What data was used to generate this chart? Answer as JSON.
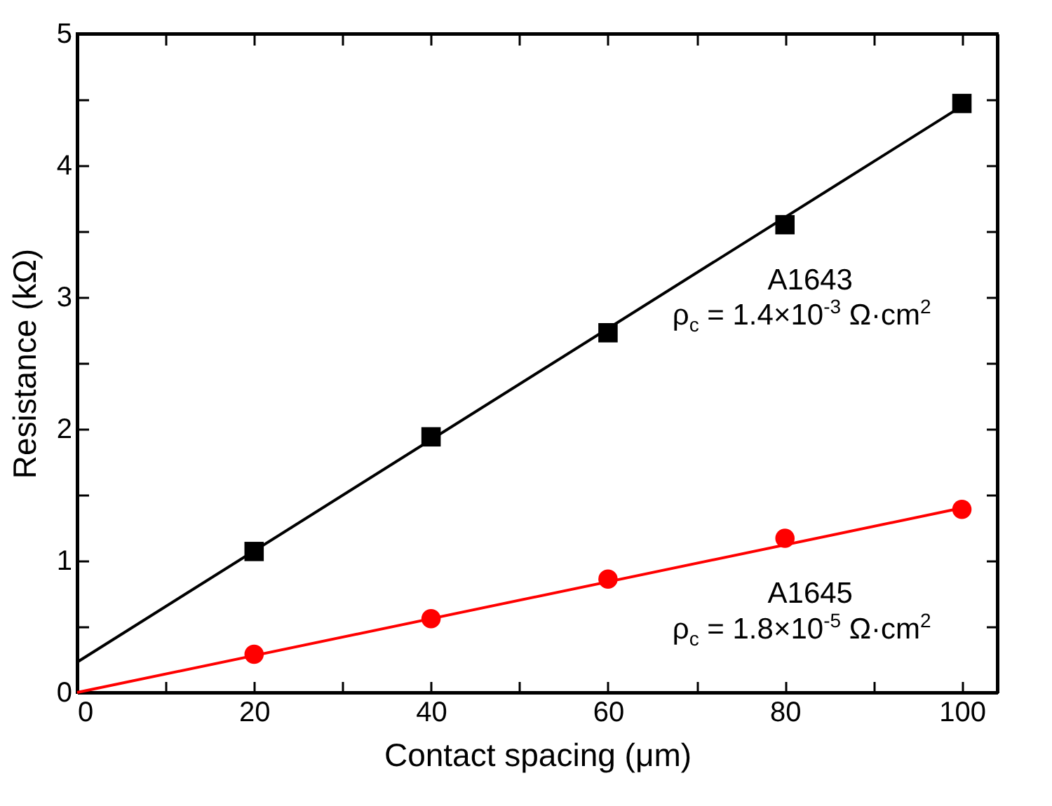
{
  "chart_data": {
    "type": "scatter",
    "xlabel": "Contact spacing (μm)",
    "ylabel": "Resistance (kΩ)",
    "xlim": [
      0,
      104
    ],
    "ylim": [
      0,
      5
    ],
    "xticks": [
      0,
      {
        "value": 10,
        "label": null
      },
      20,
      {
        "value": 30,
        "label": null
      },
      40,
      {
        "value": 50,
        "label": null
      },
      60,
      {
        "value": 70,
        "label": null
      },
      80,
      {
        "value": 90,
        "label": null
      },
      100
    ],
    "yticks": [
      0,
      {
        "value": 0.5,
        "label": null
      },
      1,
      {
        "value": 1.5,
        "label": null
      },
      2,
      {
        "value": 2.5,
        "label": null
      },
      3,
      {
        "value": 3.5,
        "label": null
      },
      4,
      {
        "value": 4.5,
        "label": null
      },
      5
    ],
    "grid": false,
    "series": [
      {
        "type": "line",
        "color": "#000000",
        "x": [
          0,
          100
        ],
        "values": [
          0.23,
          4.45
        ]
      },
      {
        "type": "line",
        "color": "#ff0000",
        "x": [
          0,
          100
        ],
        "values": [
          0,
          1.4
        ]
      },
      {
        "name": "A1643",
        "type": "scatter",
        "marker": "square",
        "color": "#000000",
        "x": [
          20,
          40,
          60,
          80,
          100
        ],
        "values": [
          1.07,
          1.94,
          2.73,
          3.55,
          4.47
        ]
      },
      {
        "name": "A1645",
        "type": "scatter",
        "marker": "circle",
        "color": "#ff0000",
        "x": [
          20,
          40,
          60,
          80,
          100
        ],
        "values": [
          0.29,
          0.56,
          0.86,
          1.17,
          1.39
        ]
      }
    ],
    "annotations": [
      "ρ$_{c}$ = 1.4×10$^{-3}$ Ω·cm$^{2}$",
      "ρ$_{c}$ = 1.8×10$^{-5}$ Ω·cm$^{2}$"
    ]
  }
}
